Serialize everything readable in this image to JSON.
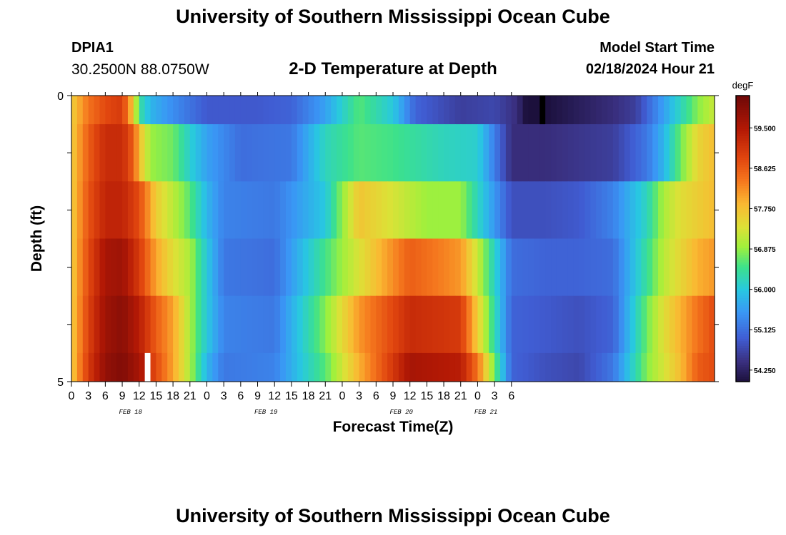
{
  "header": {
    "title": "University of Southern Mississippi Ocean Cube",
    "station_id": "DPIA1",
    "coordinates": "30.2500N  88.0750W",
    "subtitle": "2-D Temperature at Depth",
    "model_start_label": "Model Start Time",
    "model_start_value": "02/18/2024 Hour 21"
  },
  "footer": {
    "title": "University of Southern Mississippi Ocean Cube"
  },
  "chart_data": {
    "type": "heatmap",
    "title": "2-D Temperature at Depth",
    "xlabel": "Forecast Time(Z)",
    "ylabel": "Depth (ft)",
    "x_tick_labels": [
      "0",
      "3",
      "6",
      "9",
      "12",
      "15",
      "18",
      "21",
      "0",
      "3",
      "6",
      "9",
      "12",
      "15",
      "18",
      "21",
      "0",
      "3",
      "6",
      "9",
      "12",
      "15",
      "18",
      "21",
      "0",
      "3",
      "6"
    ],
    "day_labels": [
      {
        "label": "FEB 18",
        "at_tick": 4
      },
      {
        "label": "FEB 19",
        "at_tick": 12
      },
      {
        "label": "FEB 20",
        "at_tick": 20
      },
      {
        "label": "FEB 21",
        "at_tick": 25
      }
    ],
    "y_tick_labels": [
      {
        "value": 0,
        "label": "0"
      },
      {
        "value": 5,
        "label": "5"
      }
    ],
    "ylim": [
      0,
      5
    ],
    "colorbar": {
      "unit": "degF",
      "min": 54.0,
      "max": 60.2,
      "ticks": [
        "54.250",
        "55.125",
        "56.000",
        "56.875",
        "57.750",
        "58.625",
        "59.500"
      ]
    },
    "depth_rows": [
      {
        "depth_range": [
          0.0,
          0.5
        ],
        "knots": [
          [
            0,
            57.6
          ],
          [
            3,
            58.4
          ],
          [
            6,
            58.8
          ],
          [
            9,
            59.0
          ],
          [
            11,
            57.6
          ],
          [
            12,
            56.4
          ],
          [
            14,
            55.8
          ],
          [
            18,
            55.4
          ],
          [
            24,
            54.9
          ],
          [
            33,
            54.9
          ],
          [
            39,
            55.0
          ],
          [
            45,
            55.6
          ],
          [
            51,
            56.6
          ],
          [
            57,
            56.0
          ],
          [
            61,
            55.0
          ],
          [
            69,
            54.6
          ],
          [
            75,
            54.7
          ],
          [
            79,
            54.4
          ],
          [
            81,
            53.9
          ],
          [
            84,
            54.0
          ],
          [
            90,
            54.2
          ],
          [
            96,
            54.4
          ],
          [
            100,
            54.6
          ],
          [
            102,
            55.0
          ],
          [
            105,
            55.6
          ],
          [
            108,
            56.2
          ],
          [
            111,
            56.8
          ],
          [
            114,
            57.2
          ]
        ]
      },
      {
        "depth_range": [
          0.5,
          1.5
        ],
        "knots": [
          [
            0,
            57.6
          ],
          [
            3,
            58.6
          ],
          [
            6,
            59.2
          ],
          [
            9,
            59.2
          ],
          [
            11,
            58.6
          ],
          [
            12,
            57.8
          ],
          [
            14,
            56.9
          ],
          [
            18,
            56.7
          ],
          [
            21,
            56.1
          ],
          [
            24,
            55.6
          ],
          [
            30,
            55.1
          ],
          [
            39,
            55.2
          ],
          [
            45,
            56.2
          ],
          [
            51,
            56.6
          ],
          [
            57,
            56.5
          ],
          [
            66,
            56.2
          ],
          [
            72,
            56.1
          ],
          [
            78,
            54.4
          ],
          [
            84,
            54.4
          ],
          [
            90,
            54.5
          ],
          [
            96,
            54.6
          ],
          [
            102,
            55.2
          ],
          [
            105,
            55.8
          ],
          [
            108,
            56.7
          ],
          [
            111,
            57.5
          ],
          [
            114,
            57.8
          ]
        ]
      },
      {
        "depth_range": [
          1.5,
          2.5
        ],
        "knots": [
          [
            0,
            57.6
          ],
          [
            3,
            58.7
          ],
          [
            6,
            59.3
          ],
          [
            9,
            59.3
          ],
          [
            12,
            58.8
          ],
          [
            15,
            57.6
          ],
          [
            18,
            57.1
          ],
          [
            21,
            56.6
          ],
          [
            24,
            55.8
          ],
          [
            27,
            55.3
          ],
          [
            36,
            55.2
          ],
          [
            45,
            56.0
          ],
          [
            51,
            57.7
          ],
          [
            57,
            57.3
          ],
          [
            63,
            56.9
          ],
          [
            69,
            56.9
          ],
          [
            72,
            56.2
          ],
          [
            78,
            54.8
          ],
          [
            84,
            54.8
          ],
          [
            90,
            54.9
          ],
          [
            96,
            55.3
          ],
          [
            102,
            56.2
          ],
          [
            105,
            57.0
          ],
          [
            108,
            57.4
          ],
          [
            111,
            57.6
          ],
          [
            114,
            57.8
          ]
        ]
      },
      {
        "depth_range": [
          2.5,
          3.5
        ],
        "knots": [
          [
            0,
            57.6
          ],
          [
            3,
            58.8
          ],
          [
            6,
            59.6
          ],
          [
            9,
            59.7
          ],
          [
            12,
            59.0
          ],
          [
            15,
            58.0
          ],
          [
            18,
            57.4
          ],
          [
            21,
            57.0
          ],
          [
            24,
            56.0
          ],
          [
            27,
            55.2
          ],
          [
            36,
            55.1
          ],
          [
            45,
            56.5
          ],
          [
            50,
            57.2
          ],
          [
            60,
            58.6
          ],
          [
            69,
            58.1
          ],
          [
            72,
            57.2
          ],
          [
            78,
            55.1
          ],
          [
            84,
            55.0
          ],
          [
            90,
            55.0
          ],
          [
            96,
            55.1
          ],
          [
            102,
            56.4
          ],
          [
            105,
            57.1
          ],
          [
            108,
            57.5
          ],
          [
            111,
            57.9
          ],
          [
            114,
            58.1
          ]
        ]
      },
      {
        "depth_range": [
          3.5,
          4.5
        ],
        "knots": [
          [
            0,
            57.6
          ],
          [
            3,
            58.9
          ],
          [
            6,
            59.7
          ],
          [
            9,
            59.9
          ],
          [
            12,
            59.4
          ],
          [
            15,
            58.6
          ],
          [
            18,
            58.0
          ],
          [
            24,
            56.0
          ],
          [
            27,
            55.3
          ],
          [
            36,
            55.2
          ],
          [
            45,
            56.8
          ],
          [
            51,
            58.1
          ],
          [
            60,
            59.2
          ],
          [
            69,
            59.0
          ],
          [
            72,
            57.6
          ],
          [
            78,
            55.0
          ],
          [
            84,
            54.9
          ],
          [
            90,
            54.8
          ],
          [
            96,
            55.0
          ],
          [
            102,
            56.7
          ],
          [
            105,
            57.4
          ],
          [
            108,
            57.9
          ],
          [
            111,
            58.4
          ],
          [
            114,
            58.8
          ]
        ]
      },
      {
        "depth_range": [
          4.5,
          5.0
        ],
        "knots": [
          [
            0,
            57.6
          ],
          [
            3,
            59.0
          ],
          [
            6,
            59.8
          ],
          [
            9,
            60.0
          ],
          [
            12,
            59.6
          ],
          [
            15,
            58.8
          ],
          [
            18,
            58.0
          ],
          [
            21,
            57.0
          ],
          [
            24,
            55.8
          ],
          [
            27,
            55.2
          ],
          [
            36,
            55.3
          ],
          [
            45,
            56.6
          ],
          [
            51,
            57.9
          ],
          [
            60,
            59.6
          ],
          [
            69,
            59.4
          ],
          [
            72,
            58.4
          ],
          [
            78,
            55.0
          ],
          [
            84,
            54.8
          ],
          [
            90,
            54.7
          ],
          [
            96,
            55.2
          ],
          [
            102,
            56.8
          ],
          [
            105,
            57.3
          ],
          [
            108,
            57.8
          ],
          [
            111,
            58.6
          ],
          [
            114,
            58.8
          ]
        ]
      }
    ],
    "marks": [
      {
        "color": "#ffffff",
        "hour": 13.5,
        "depth_range": [
          4.5,
          5.0
        ]
      },
      {
        "color": "#000000",
        "hour": 83.5,
        "depth_range": [
          0.0,
          0.5
        ]
      }
    ],
    "forecast_hours": 114
  }
}
